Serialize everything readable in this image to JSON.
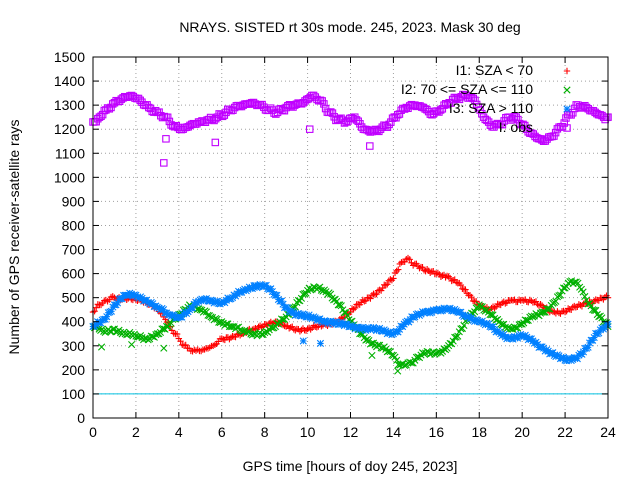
{
  "chart_data": {
    "type": "scatter",
    "title": "NRAYS. SISTED rt 30s mode. 245, 2023. Mask 30 deg",
    "xlabel": "GPS time [hours of doy 245, 2023]",
    "ylabel": "Number of GPS receiver-satellite rays",
    "xlim": [
      0,
      24
    ],
    "ylim": [
      0,
      1500
    ],
    "x_ticks": [
      "0",
      "2",
      "4",
      "6",
      "8",
      "10",
      "12",
      "14",
      "16",
      "18",
      "20",
      "22",
      "24"
    ],
    "y_ticks": [
      "0",
      "100",
      "200",
      "300",
      "400",
      "500",
      "600",
      "700",
      "800",
      "900",
      "1000",
      "1100",
      "1200",
      "1300",
      "1400",
      "1500"
    ],
    "grid": true,
    "legend_position": "top-right",
    "threshold_line": {
      "y": 100,
      "color": "#00c0e0"
    },
    "series": [
      {
        "name": "I1: SZA < 70",
        "marker": "+",
        "color": "#ff0000",
        "x": [
          0.0,
          0.3,
          0.6,
          1.0,
          1.5,
          2.0,
          2.5,
          3.0,
          3.3,
          3.6,
          4.0,
          4.4,
          4.8,
          5.2,
          5.6,
          6.0,
          6.5,
          7.0,
          7.5,
          8.0,
          8.5,
          9.0,
          9.5,
          10.0,
          10.5,
          11.0,
          11.5,
          12.0,
          12.5,
          13.0,
          13.5,
          14.0,
          14.3,
          14.6,
          15.0,
          15.5,
          16.0,
          16.5,
          17.0,
          17.5,
          18.0,
          18.5,
          19.0,
          19.5,
          20.0,
          20.5,
          21.0,
          21.5,
          22.0,
          22.5,
          23.0,
          23.5,
          24.0
        ],
        "y": [
          440,
          470,
          490,
          500,
          500,
          490,
          480,
          460,
          420,
          380,
          330,
          290,
          280,
          285,
          300,
          330,
          340,
          350,
          370,
          390,
          400,
          380,
          370,
          370,
          380,
          390,
          410,
          440,
          480,
          510,
          540,
          580,
          640,
          660,
          640,
          610,
          600,
          590,
          560,
          510,
          470,
          450,
          470,
          490,
          490,
          480,
          460,
          440,
          440,
          460,
          480,
          490,
          500
        ]
      },
      {
        "name": "I2: 70 <= SZA <= 110",
        "marker": "x",
        "color": "#00b000",
        "x": [
          0.0,
          0.5,
          1.0,
          1.5,
          2.0,
          2.5,
          3.0,
          3.5,
          4.0,
          4.5,
          5.0,
          5.5,
          6.0,
          6.5,
          7.0,
          7.5,
          8.0,
          8.5,
          9.0,
          9.5,
          10.0,
          10.5,
          11.0,
          11.5,
          12.0,
          12.5,
          13.0,
          13.5,
          14.0,
          14.3,
          14.6,
          15.0,
          15.5,
          16.0,
          16.5,
          17.0,
          17.5,
          18.0,
          18.5,
          19.0,
          19.5,
          20.0,
          20.5,
          21.0,
          21.5,
          22.0,
          22.3,
          22.6,
          23.0,
          23.5,
          24.0
        ],
        "y": [
          380,
          360,
          370,
          350,
          340,
          330,
          350,
          380,
          430,
          470,
          450,
          420,
          400,
          380,
          360,
          350,
          355,
          380,
          420,
          480,
          530,
          540,
          520,
          470,
          400,
          350,
          310,
          290,
          260,
          220,
          220,
          240,
          270,
          270,
          290,
          340,
          420,
          470,
          430,
          390,
          370,
          390,
          420,
          440,
          480,
          540,
          570,
          560,
          490,
          430,
          380
        ]
      },
      {
        "name": "I3: SZA > 110",
        "marker": "*",
        "color": "#0080ff",
        "x": [
          0.0,
          0.5,
          1.0,
          1.5,
          2.0,
          2.5,
          3.0,
          3.5,
          4.0,
          4.5,
          5.0,
          5.5,
          6.0,
          6.5,
          7.0,
          7.5,
          8.0,
          8.5,
          9.0,
          9.5,
          10.0,
          10.5,
          11.0,
          11.5,
          12.0,
          12.5,
          13.0,
          13.5,
          14.0,
          14.5,
          15.0,
          15.5,
          16.0,
          16.5,
          17.0,
          17.5,
          18.0,
          18.5,
          19.0,
          19.5,
          20.0,
          20.5,
          21.0,
          21.5,
          22.0,
          22.5,
          23.0,
          23.5,
          24.0
        ],
        "y": [
          380,
          410,
          470,
          510,
          510,
          490,
          460,
          430,
          420,
          450,
          490,
          490,
          480,
          500,
          530,
          550,
          550,
          510,
          460,
          430,
          420,
          410,
          400,
          390,
          380,
          375,
          370,
          360,
          350,
          390,
          420,
          440,
          450,
          450,
          440,
          420,
          400,
          380,
          350,
          330,
          340,
          320,
          290,
          260,
          240,
          250,
          290,
          350,
          390
        ]
      },
      {
        "name": "I: obs",
        "marker": "square",
        "color": "#c000ff",
        "x": [
          0.0,
          0.3,
          0.6,
          1.0,
          1.4,
          1.8,
          2.2,
          2.6,
          3.0,
          3.4,
          3.8,
          4.2,
          4.6,
          5.0,
          5.4,
          5.8,
          6.2,
          6.6,
          7.0,
          7.4,
          7.8,
          8.2,
          8.6,
          9.0,
          9.4,
          9.8,
          10.2,
          10.6,
          11.0,
          11.4,
          11.8,
          12.2,
          12.6,
          13.0,
          13.4,
          13.8,
          14.2,
          14.6,
          15.0,
          15.4,
          15.8,
          16.2,
          16.6,
          17.0,
          17.4,
          17.8,
          18.2,
          18.6,
          19.0,
          19.4,
          19.8,
          20.2,
          20.6,
          21.0,
          21.4,
          21.8,
          22.2,
          22.6,
          23.0,
          23.4,
          23.8,
          24.0
        ],
        "y": [
          1230,
          1250,
          1280,
          1310,
          1330,
          1340,
          1320,
          1290,
          1270,
          1250,
          1210,
          1200,
          1220,
          1230,
          1240,
          1250,
          1270,
          1290,
          1300,
          1310,
          1300,
          1280,
          1270,
          1290,
          1300,
          1310,
          1340,
          1320,
          1270,
          1240,
          1230,
          1250,
          1200,
          1190,
          1200,
          1220,
          1260,
          1290,
          1300,
          1290,
          1260,
          1280,
          1310,
          1330,
          1340,
          1320,
          1250,
          1210,
          1220,
          1250,
          1240,
          1200,
          1170,
          1150,
          1170,
          1210,
          1260,
          1300,
          1290,
          1270,
          1250,
          1250
        ]
      }
    ],
    "outliers": [
      {
        "series": "I: obs",
        "x": 3.3,
        "y": 1060
      },
      {
        "series": "I: obs",
        "x": 3.4,
        "y": 1160
      },
      {
        "series": "I: obs",
        "x": 5.7,
        "y": 1145
      },
      {
        "series": "I: obs",
        "x": 10.1,
        "y": 1200
      },
      {
        "series": "I: obs",
        "x": 12.9,
        "y": 1130
      },
      {
        "series": "I2: 70 <= SZA <= 110",
        "x": 0.4,
        "y": 295
      },
      {
        "series": "I2: 70 <= SZA <= 110",
        "x": 1.8,
        "y": 305
      },
      {
        "series": "I2: 70 <= SZA <= 110",
        "x": 3.3,
        "y": 290
      },
      {
        "series": "I2: 70 <= SZA <= 110",
        "x": 13.0,
        "y": 260
      },
      {
        "series": "I2: 70 <= SZA <= 110",
        "x": 14.2,
        "y": 195
      },
      {
        "series": "I3: SZA > 110",
        "x": 9.8,
        "y": 320
      },
      {
        "series": "I3: SZA > 110",
        "x": 10.6,
        "y": 310
      }
    ]
  }
}
